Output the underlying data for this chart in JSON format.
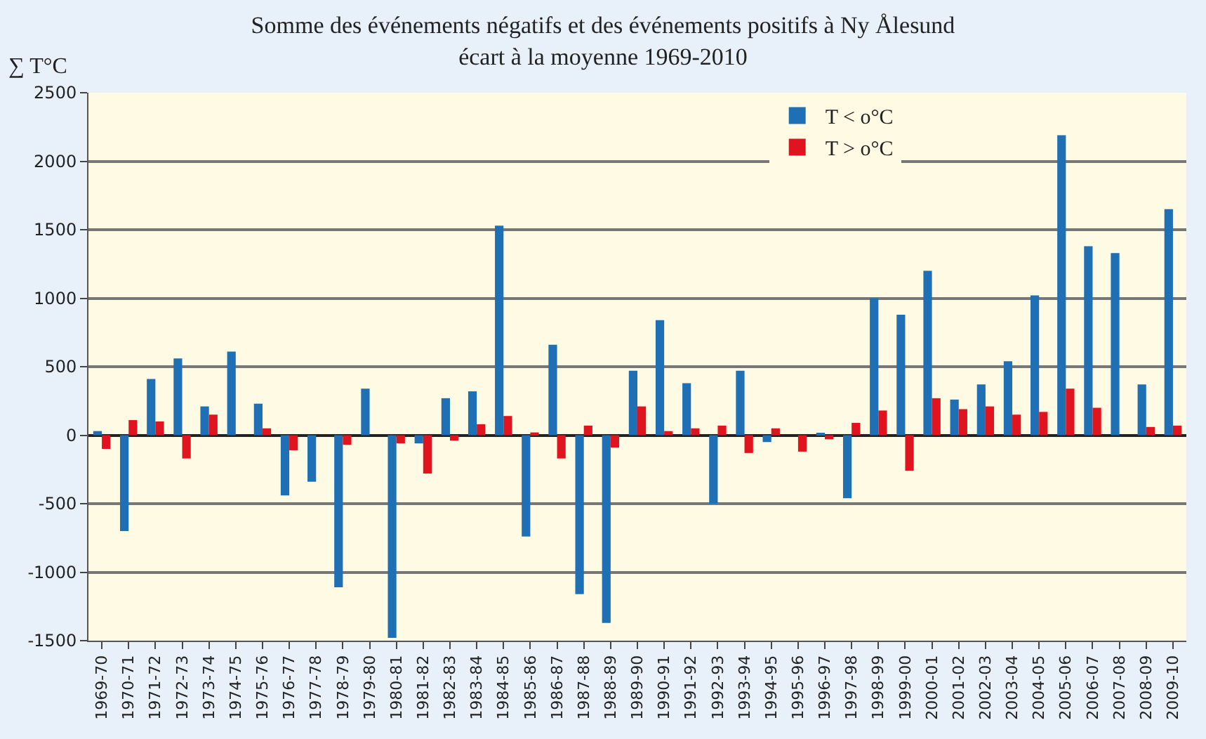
{
  "chart_data": {
    "type": "bar",
    "title": "Somme des événements négatifs et des événements positifs à Ny Ålesund",
    "subtitle": "écart à la moyenne 1969-2010",
    "ylabel": "∑ T°C",
    "categories": [
      "1969-70",
      "1970-71",
      "1971-72",
      "1972-73",
      "1973-74",
      "1974-75",
      "1975-76",
      "1976-77",
      "1977-78",
      "1978-79",
      "1979-80",
      "1980-81",
      "1981-82",
      "1982-83",
      "1983-84",
      "1984-85",
      "1985-86",
      "1986-87",
      "1987-88",
      "1988-89",
      "1989-90",
      "1990-91",
      "1991-92",
      "1992-93",
      "1993-94",
      "1994-95",
      "1995-96",
      "1996-97",
      "1997-98",
      "1998-99",
      "1999-00",
      "2000-01",
      "2001-02",
      "2002-03",
      "2003-04",
      "2004-05",
      "2005-06",
      "2006-07",
      "2007-08",
      "2008-09",
      "2009-10"
    ],
    "series": [
      {
        "name": "T < o°C",
        "color": "#1f6fb4",
        "values": [
          30,
          -700,
          410,
          560,
          210,
          610,
          230,
          -440,
          -340,
          -1110,
          340,
          -1480,
          -60,
          270,
          320,
          1530,
          -740,
          660,
          -1160,
          -1370,
          470,
          840,
          380,
          -500,
          470,
          -50,
          0,
          10,
          -460,
          1000,
          880,
          1200,
          260,
          370,
          540,
          1020,
          2190,
          1380,
          1330,
          370,
          1650
        ]
      },
      {
        "name": "T > o°C",
        "color": "#e0141e",
        "values": [
          -100,
          110,
          100,
          -170,
          150,
          0,
          50,
          -110,
          0,
          -70,
          0,
          -60,
          -280,
          -40,
          80,
          140,
          20,
          -170,
          70,
          -90,
          210,
          30,
          50,
          70,
          -130,
          50,
          -120,
          -30,
          90,
          180,
          -260,
          270,
          190,
          210,
          150,
          170,
          340,
          200,
          0,
          60,
          70
        ]
      }
    ],
    "ylim": [
      -1500,
      2500
    ],
    "yticks": [
      -1500,
      -1000,
      -500,
      0,
      500,
      1000,
      1500,
      2000,
      2500
    ],
    "grid": "y",
    "legend": "top right"
  }
}
